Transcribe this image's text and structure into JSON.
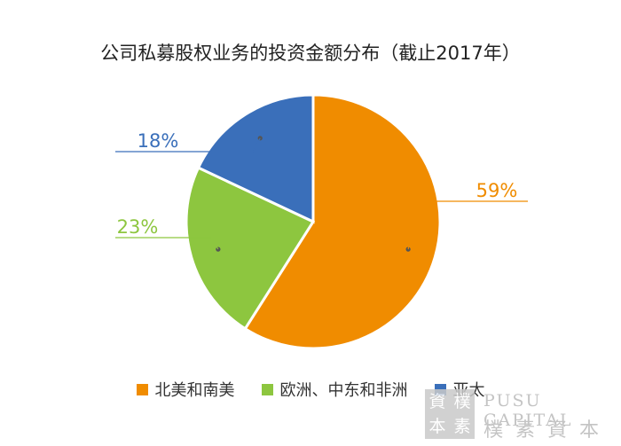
{
  "chart_data": {
    "type": "pie",
    "title": "公司私募股权业务的投资金额分布（截止2017年）",
    "slices": [
      {
        "name": "北美和南美",
        "value": 59,
        "label": "59%",
        "color": "#f08c00"
      },
      {
        "name": "欧洲、中东和非洲",
        "value": 23,
        "label": "23%",
        "color": "#8dc63f"
      },
      {
        "name": "亚太",
        "value": 18,
        "label": "18%",
        "color": "#3a6fba"
      }
    ],
    "start_angle_deg": 0,
    "direction": "clockwise",
    "legend_position": "bottom"
  },
  "watermark": {
    "seal_chars": [
      "資",
      "樸",
      "本",
      "素"
    ],
    "english": "PUSU CAPITAL",
    "chinese": "樸素資本"
  }
}
